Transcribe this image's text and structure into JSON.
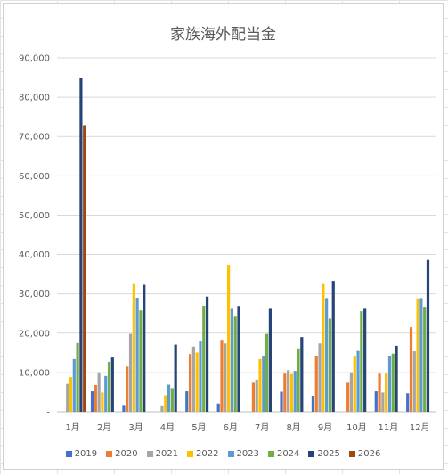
{
  "chart_data": {
    "type": "bar",
    "title": "家族海外配当金",
    "categories": [
      "1月",
      "2月",
      "3月",
      "4月",
      "5月",
      "6月",
      "7月",
      "8月",
      "9月",
      "10月",
      "11月",
      "12月"
    ],
    "ylim": [
      0,
      90000
    ],
    "yticks": [
      "-",
      "10,000",
      "20,000",
      "30,000",
      "40,000",
      "50,000",
      "60,000",
      "70,000",
      "80,000",
      "90,000"
    ],
    "grid": true,
    "legend_position": "bottom",
    "series": [
      {
        "name": "2019",
        "color": "#4472C4",
        "values": [
          0,
          5200,
          1500,
          0,
          5200,
          2100,
          0,
          5100,
          3900,
          0,
          5200,
          4700
        ]
      },
      {
        "name": "2020",
        "color": "#ED7D31",
        "values": [
          0,
          6800,
          11500,
          0,
          14700,
          18100,
          7400,
          9700,
          14100,
          7400,
          9700,
          21500
        ]
      },
      {
        "name": "2021",
        "color": "#A5A5A5",
        "values": [
          7100,
          9800,
          19800,
          1400,
          16600,
          17400,
          8200,
          10600,
          17400,
          9800,
          4900,
          15400
        ]
      },
      {
        "name": "2022",
        "color": "#FFC000",
        "values": [
          8800,
          4900,
          32500,
          4200,
          15100,
          37400,
          13400,
          9600,
          32500,
          14100,
          9700,
          28600
        ]
      },
      {
        "name": "2023",
        "color": "#5B9BD5",
        "values": [
          13400,
          9100,
          28900,
          6900,
          17900,
          26200,
          14200,
          10400,
          28700,
          15500,
          14100,
          28700
        ]
      },
      {
        "name": "2024",
        "color": "#70AD47",
        "values": [
          17500,
          12700,
          25800,
          5800,
          26800,
          24200,
          19800,
          15900,
          23700,
          25600,
          14800,
          26500
        ]
      },
      {
        "name": "2025",
        "color": "#264478",
        "values": [
          84900,
          13800,
          32300,
          17100,
          29300,
          26700,
          26200,
          19000,
          33300,
          26200,
          16800,
          38600
        ]
      },
      {
        "name": "2026",
        "color": "#9E480E",
        "values": [
          72900,
          0,
          0,
          0,
          0,
          0,
          0,
          0,
          0,
          0,
          0,
          0
        ]
      }
    ]
  }
}
